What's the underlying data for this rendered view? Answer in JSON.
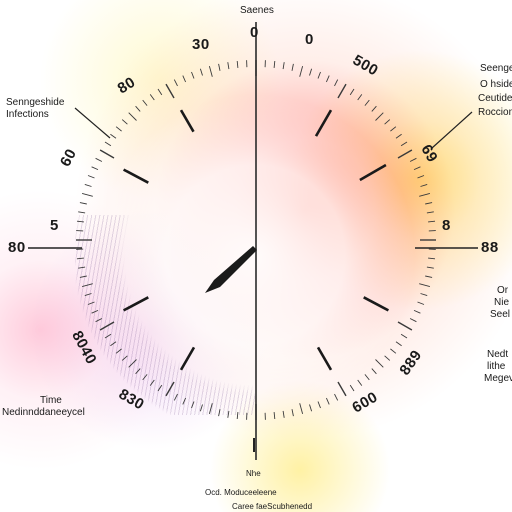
{
  "title": "Saenes",
  "ticks": {
    "t0": "0",
    "t0b": "0",
    "t30": "30",
    "t80": "80",
    "t500": "500",
    "t60": "60",
    "t69": "69",
    "t5": "5",
    "t8": "8",
    "t80left": "80",
    "t88": "88",
    "t8040": "8040",
    "t889": "889",
    "t830": "830",
    "t600": "600"
  },
  "labels": {
    "left_top_1": "Senngeshide",
    "left_top_2": "Infections",
    "right_top_1": "Seenge",
    "right_top_2": "O hside",
    "right_top_3": "Ceutide",
    "right_top_4": "Roccion",
    "right_mid_1": "Or",
    "right_mid_2": "Nie",
    "right_mid_3": "Seel",
    "right_low_1": "Nedt",
    "right_low_2": "lithe",
    "right_low_3": "Megeve",
    "left_low_1": "Time",
    "left_low_2": "Nedinnddaneeycel",
    "bottom_1": "Nhe",
    "bottom_2": "Ocd. Moduceeleene",
    "bottom_3": "Caree faeScubhenedd"
  },
  "colors": {
    "accent_red": "#ff4f3e",
    "accent_yellow": "#ffe04a",
    "accent_pink": "#f7a3c0",
    "ink": "#1a1a1a"
  }
}
